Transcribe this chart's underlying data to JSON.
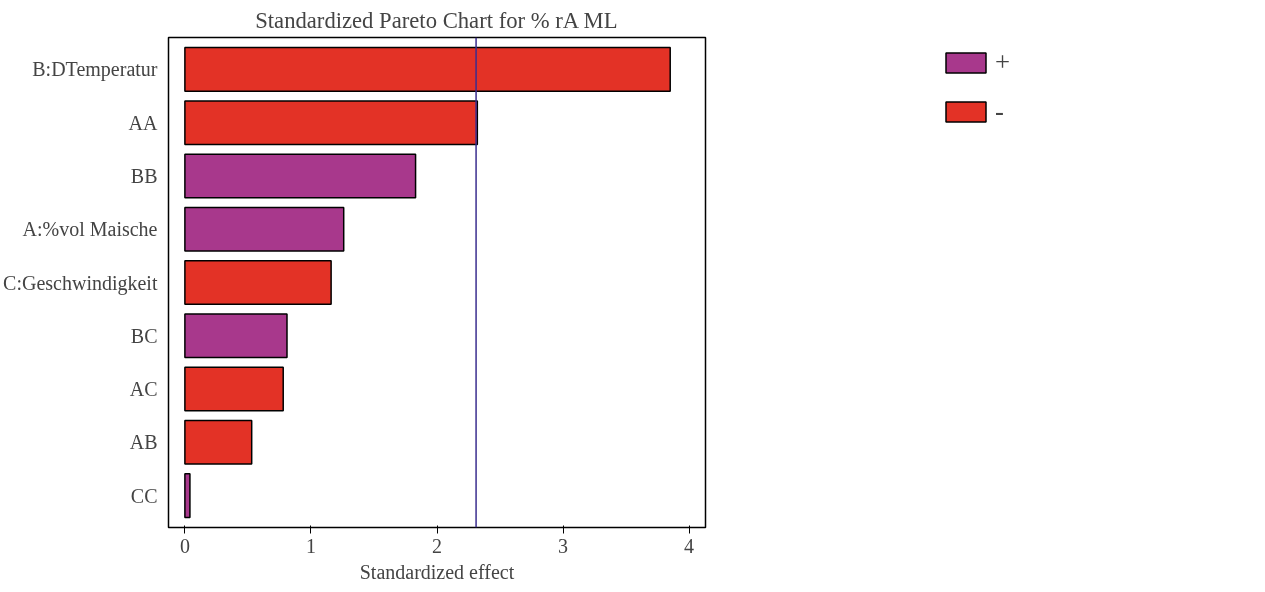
{
  "chart_data": {
    "type": "bar",
    "orientation": "horizontal",
    "title": "Standardized Pareto Chart for % rA ML",
    "xlabel": "Standardized effect",
    "categories": [
      "B:DTemperatur",
      "AA",
      "BB",
      "A:%vol Maische",
      "C:Geschwindigkeit",
      "BC",
      "AC",
      "AB",
      "CC"
    ],
    "series": [
      {
        "name": "+",
        "color": "#a8388c",
        "values": [
          null,
          null,
          1.83,
          1.26,
          null,
          0.81,
          null,
          null,
          0.04
        ]
      },
      {
        "name": "-",
        "color": "#e33226",
        "values": [
          3.85,
          2.32,
          null,
          null,
          1.16,
          null,
          0.78,
          0.53,
          null
        ]
      }
    ],
    "xlim": [
      -0.13,
      4.13
    ],
    "xticks": [
      0,
      1,
      2,
      3,
      4
    ],
    "grid": false,
    "legend": "top right",
    "ref_lines": [
      {
        "axis": "x",
        "value": 2.31,
        "color": "#3b2d8f"
      }
    ]
  }
}
